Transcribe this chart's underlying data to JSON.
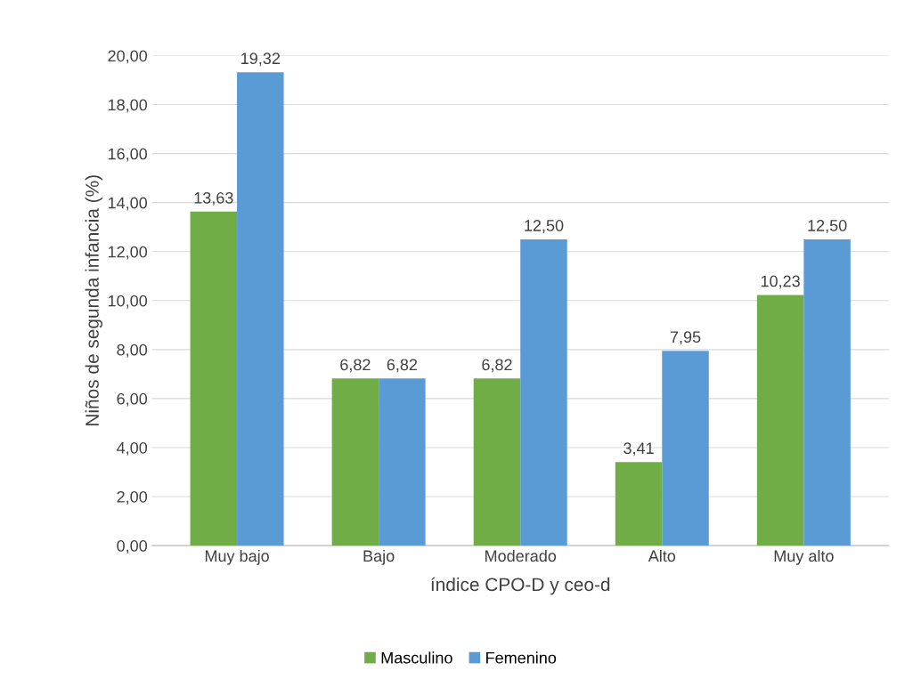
{
  "chart_data": {
    "type": "bar",
    "xlabel": "índice CPO-D y ceo-d",
    "ylabel": "Niños de segunda infancia (%)",
    "categories": [
      "Muy bajo",
      "Bajo",
      "Moderado",
      "Alto",
      "Muy alto"
    ],
    "series": [
      {
        "name": "Masculino",
        "color": "#70ad47",
        "values": [
          13.63,
          6.82,
          6.82,
          3.41,
          10.23
        ],
        "value_labels": [
          "13,63",
          "6,82",
          "6,82",
          "3,41",
          "10,23"
        ]
      },
      {
        "name": "Femenino",
        "color": "#5b9bd5",
        "values": [
          19.32,
          6.82,
          12.5,
          7.95,
          12.5
        ],
        "value_labels": [
          "19,32",
          "6,82",
          "12,50",
          "7,95",
          "12,50"
        ]
      }
    ],
    "ylim": [
      0,
      20
    ],
    "yticks": [
      {
        "value": 0,
        "label": "0,00"
      },
      {
        "value": 2,
        "label": "2,00"
      },
      {
        "value": 4,
        "label": "4,00"
      },
      {
        "value": 6,
        "label": "6,00"
      },
      {
        "value": 8,
        "label": "8,00"
      },
      {
        "value": 10,
        "label": "10,00"
      },
      {
        "value": 12,
        "label": "12,00"
      },
      {
        "value": 14,
        "label": "14,00"
      },
      {
        "value": 16,
        "label": "16,00"
      },
      {
        "value": 18,
        "label": "18,00"
      },
      {
        "value": 20,
        "label": "20,00"
      }
    ],
    "grid": "y",
    "legend": "bottom"
  }
}
